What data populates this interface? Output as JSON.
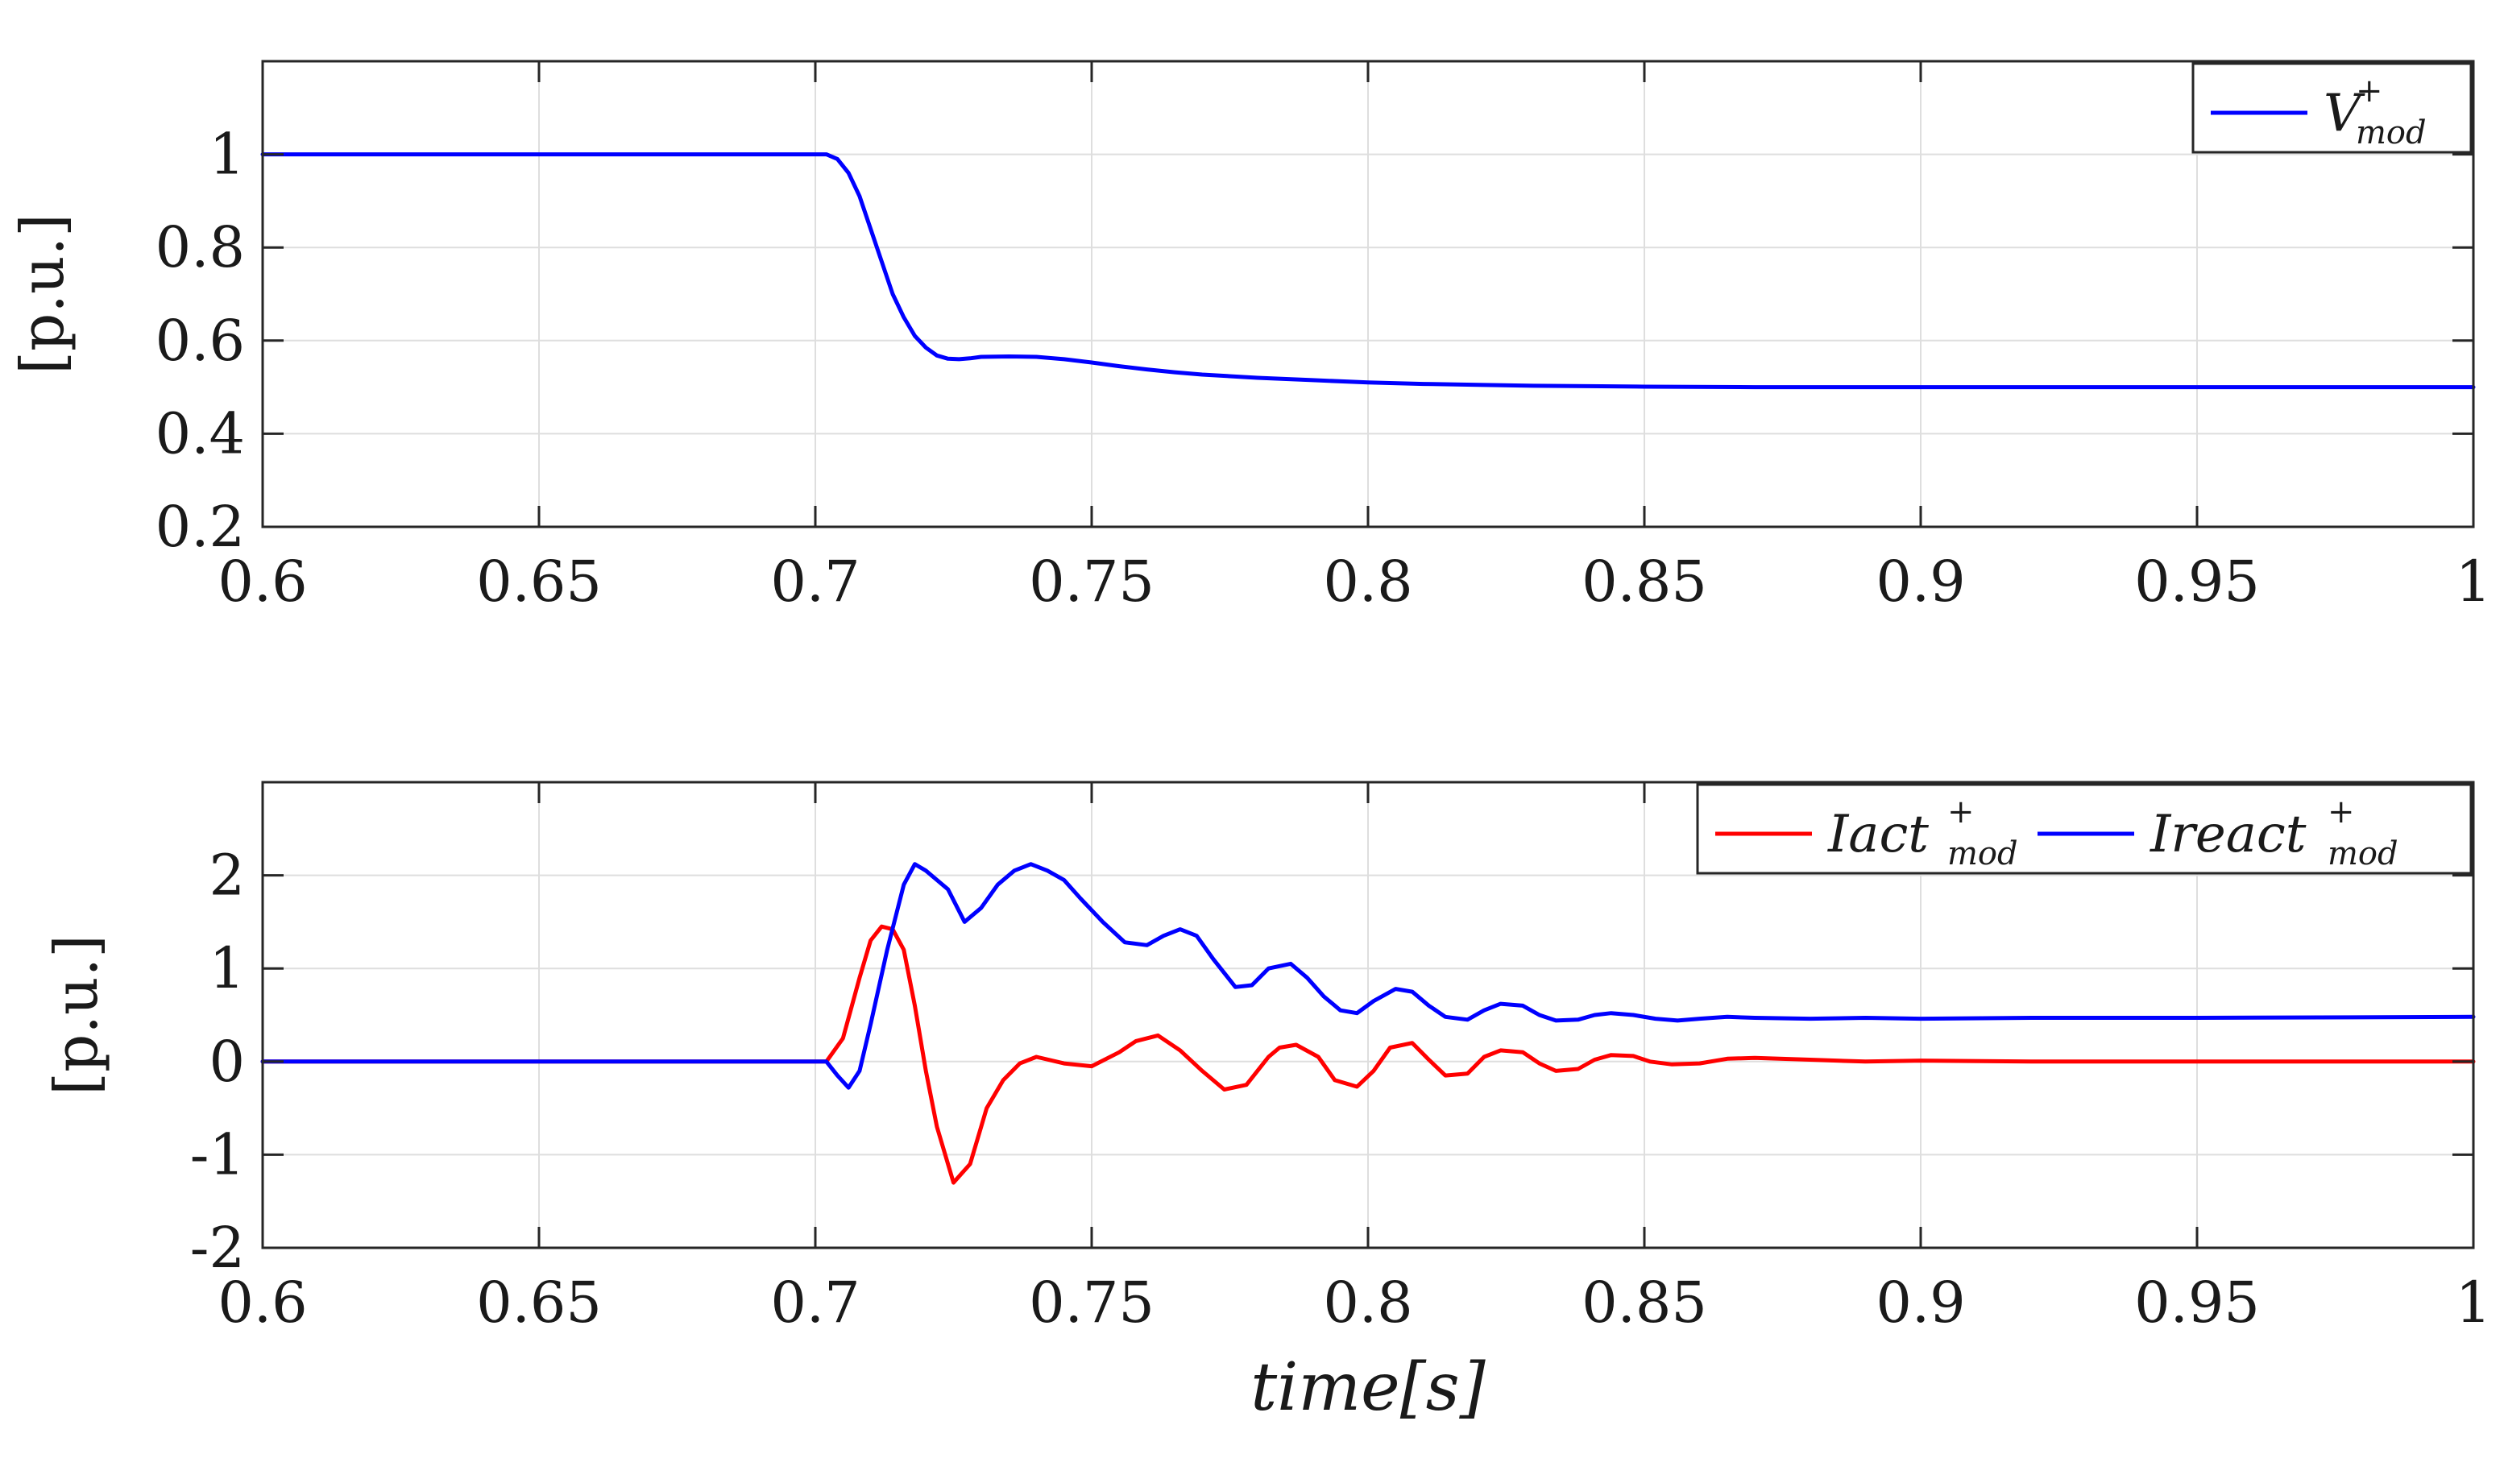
{
  "chart_data": [
    {
      "type": "line",
      "xlabel": "",
      "ylabel": "[p.u.]",
      "xlim": [
        0.6,
        1.0
      ],
      "ylim": [
        0.2,
        1.2
      ],
      "xticks": [
        0.6,
        0.65,
        0.7,
        0.75,
        0.8,
        0.85,
        0.9,
        0.95,
        1.0
      ],
      "xtick_labels": [
        "0.6",
        "0.65",
        "0.7",
        "0.75",
        "0.8",
        "0.85",
        "0.9",
        "0.95",
        "1"
      ],
      "yticks": [
        0.2,
        0.4,
        0.6,
        0.8,
        1.0
      ],
      "ytick_labels": [
        "0.2",
        "0.4",
        "0.6",
        "0.8",
        "1"
      ],
      "grid": true,
      "legend_position": "top-right",
      "series": [
        {
          "name": "V",
          "legend_sup": "+",
          "legend_sub": "mod",
          "color": "#0000ff",
          "x": [
            0.6,
            0.65,
            0.7,
            0.702,
            0.704,
            0.706,
            0.708,
            0.71,
            0.712,
            0.714,
            0.716,
            0.718,
            0.72,
            0.722,
            0.724,
            0.726,
            0.728,
            0.73,
            0.735,
            0.74,
            0.745,
            0.75,
            0.755,
            0.76,
            0.765,
            0.77,
            0.78,
            0.79,
            0.8,
            0.81,
            0.82,
            0.83,
            0.84,
            0.85,
            0.87,
            0.9,
            0.95,
            1.0
          ],
          "y": [
            1.0,
            1.0,
            1.0,
            1.0,
            0.99,
            0.96,
            0.91,
            0.84,
            0.77,
            0.7,
            0.65,
            0.61,
            0.585,
            0.568,
            0.561,
            0.56,
            0.562,
            0.565,
            0.566,
            0.565,
            0.56,
            0.553,
            0.545,
            0.538,
            0.532,
            0.527,
            0.52,
            0.515,
            0.51,
            0.507,
            0.505,
            0.503,
            0.502,
            0.501,
            0.5,
            0.5,
            0.5,
            0.5
          ]
        }
      ]
    },
    {
      "type": "line",
      "xlabel": "time[s]",
      "ylabel": "[p.u.]",
      "xlim": [
        0.6,
        1.0
      ],
      "ylim": [
        -2,
        3
      ],
      "xticks": [
        0.6,
        0.65,
        0.7,
        0.75,
        0.8,
        0.85,
        0.9,
        0.95,
        1.0
      ],
      "xtick_labels": [
        "0.6",
        "0.65",
        "0.7",
        "0.75",
        "0.8",
        "0.85",
        "0.9",
        "0.95",
        "1"
      ],
      "yticks": [
        -2,
        -1,
        0,
        1,
        2
      ],
      "ytick_labels": [
        "-2",
        "-1",
        "0",
        "1",
        "2"
      ],
      "grid": true,
      "legend_position": "top-right",
      "series": [
        {
          "name": "Iact",
          "legend_sup": "+",
          "legend_sub": "mod",
          "color": "#ff0000",
          "x": [
            0.6,
            0.65,
            0.7,
            0.702,
            0.705,
            0.708,
            0.71,
            0.712,
            0.714,
            0.716,
            0.718,
            0.72,
            0.722,
            0.725,
            0.728,
            0.731,
            0.734,
            0.737,
            0.74,
            0.745,
            0.75,
            0.755,
            0.758,
            0.762,
            0.766,
            0.77,
            0.774,
            0.778,
            0.782,
            0.784,
            0.787,
            0.791,
            0.794,
            0.798,
            0.801,
            0.804,
            0.808,
            0.811,
            0.814,
            0.818,
            0.821,
            0.824,
            0.828,
            0.831,
            0.834,
            0.838,
            0.841,
            0.844,
            0.848,
            0.851,
            0.855,
            0.86,
            0.865,
            0.87,
            0.88,
            0.89,
            0.9,
            0.92,
            0.95,
            1.0
          ],
          "y": [
            0.0,
            0.0,
            0.0,
            0.0,
            0.25,
            0.9,
            1.3,
            1.45,
            1.42,
            1.2,
            0.6,
            -0.1,
            -0.7,
            -1.3,
            -1.1,
            -0.5,
            -0.2,
            -0.02,
            0.05,
            -0.02,
            -0.05,
            0.1,
            0.22,
            0.28,
            0.12,
            -0.1,
            -0.3,
            -0.25,
            0.05,
            0.15,
            0.18,
            0.05,
            -0.2,
            -0.27,
            -0.1,
            0.15,
            0.2,
            0.02,
            -0.15,
            -0.13,
            0.05,
            0.12,
            0.1,
            -0.02,
            -0.1,
            -0.08,
            0.02,
            0.07,
            0.06,
            0.0,
            -0.03,
            -0.02,
            0.03,
            0.04,
            0.02,
            0.0,
            0.01,
            0.0,
            0.0,
            0.0
          ]
        },
        {
          "name": "Ireact",
          "legend_sup": "+",
          "legend_sub": "mod",
          "color": "#0000ff",
          "x": [
            0.6,
            0.65,
            0.7,
            0.702,
            0.704,
            0.706,
            0.708,
            0.71,
            0.713,
            0.716,
            0.718,
            0.72,
            0.722,
            0.724,
            0.727,
            0.73,
            0.733,
            0.736,
            0.739,
            0.742,
            0.745,
            0.748,
            0.752,
            0.756,
            0.76,
            0.763,
            0.766,
            0.769,
            0.772,
            0.776,
            0.779,
            0.782,
            0.786,
            0.789,
            0.792,
            0.795,
            0.798,
            0.801,
            0.805,
            0.808,
            0.811,
            0.814,
            0.818,
            0.821,
            0.824,
            0.828,
            0.831,
            0.834,
            0.838,
            0.841,
            0.844,
            0.848,
            0.852,
            0.856,
            0.86,
            0.865,
            0.87,
            0.88,
            0.89,
            0.9,
            0.92,
            0.95,
            1.0
          ],
          "y": [
            0.0,
            0.0,
            0.0,
            0.0,
            -0.15,
            -0.28,
            -0.1,
            0.4,
            1.2,
            1.9,
            2.12,
            2.05,
            1.95,
            1.85,
            1.5,
            1.65,
            1.9,
            2.05,
            2.12,
            2.05,
            1.95,
            1.75,
            1.5,
            1.28,
            1.25,
            1.35,
            1.42,
            1.35,
            1.1,
            0.8,
            0.82,
            1.0,
            1.05,
            0.9,
            0.7,
            0.55,
            0.52,
            0.65,
            0.78,
            0.75,
            0.6,
            0.48,
            0.45,
            0.55,
            0.62,
            0.6,
            0.5,
            0.44,
            0.45,
            0.5,
            0.52,
            0.5,
            0.46,
            0.44,
            0.46,
            0.48,
            0.47,
            0.46,
            0.47,
            0.46,
            0.47,
            0.47,
            0.48
          ]
        }
      ]
    }
  ]
}
